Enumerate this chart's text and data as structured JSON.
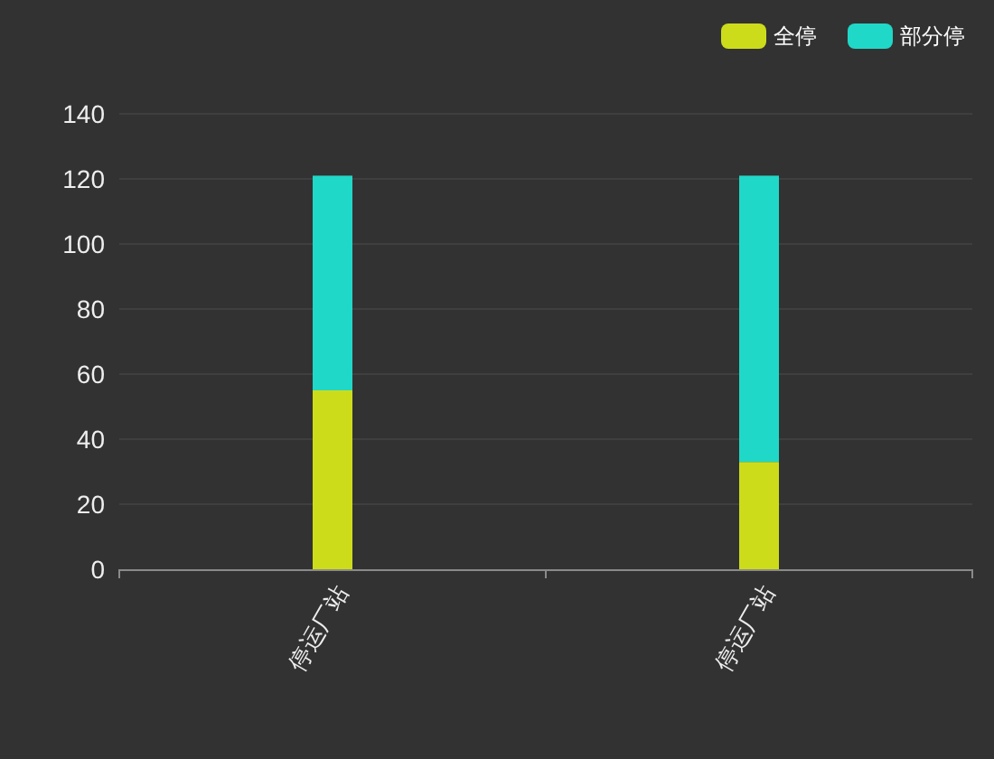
{
  "chart_data": {
    "type": "bar",
    "stacked": true,
    "categories": [
      "停运厂站",
      "停运厂站"
    ],
    "series": [
      {
        "name": "全停",
        "color": "#cddc1a",
        "values": [
          55,
          33
        ]
      },
      {
        "name": "部分停",
        "color": "#20d8c8",
        "values": [
          66,
          88
        ]
      }
    ],
    "ylim": [
      0,
      140
    ],
    "yticks": [
      0,
      20,
      40,
      60,
      80,
      100,
      120,
      140
    ],
    "grid": "y",
    "legend": "top right"
  }
}
